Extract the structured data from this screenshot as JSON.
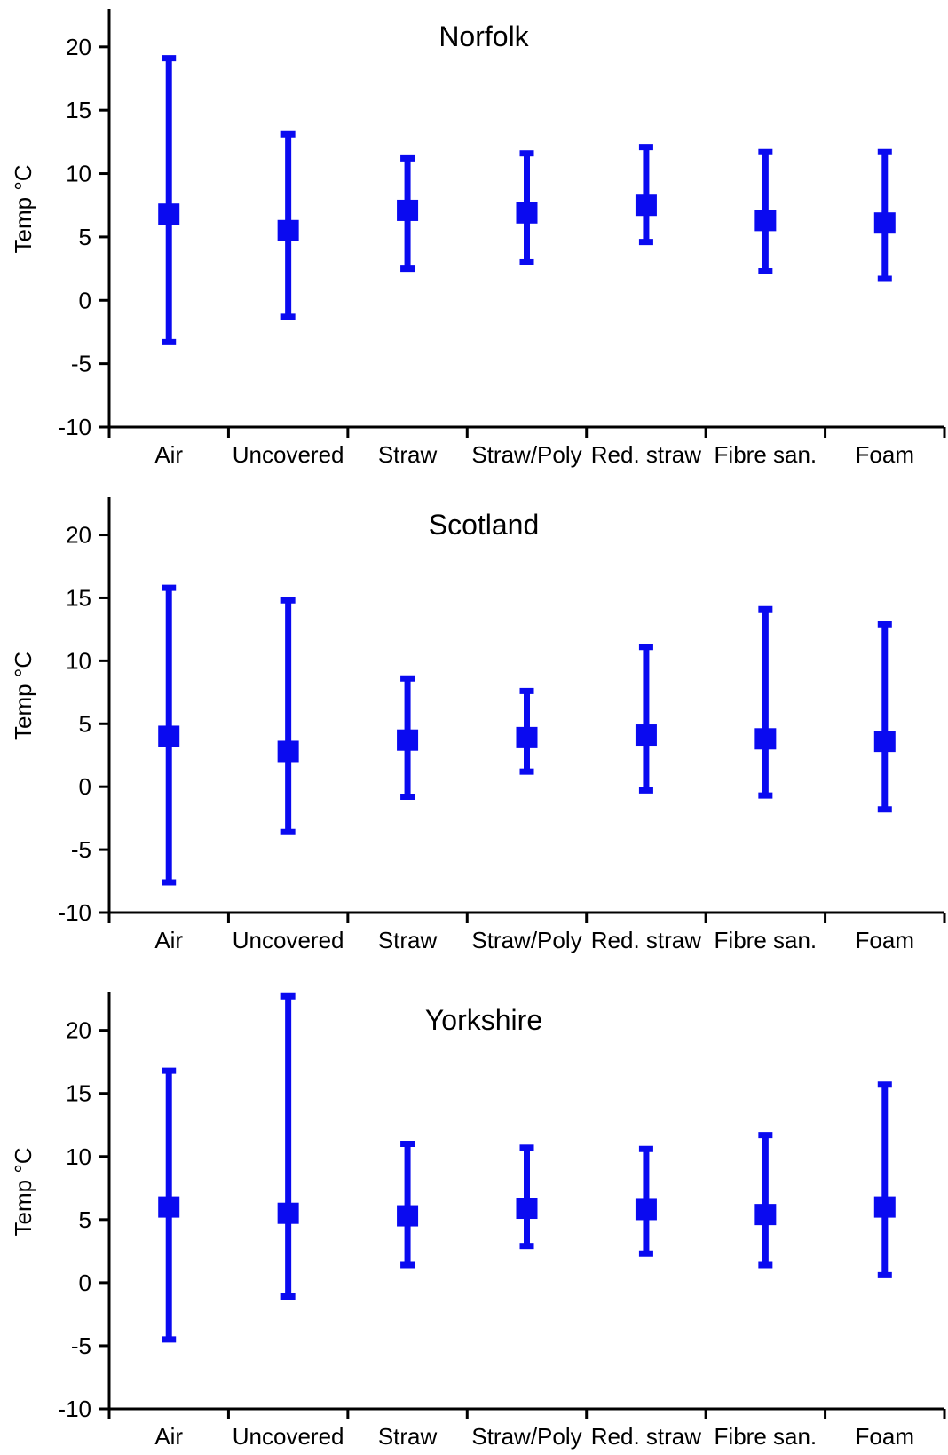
{
  "colors": {
    "series": "#0a0af0",
    "axis": "#000000"
  },
  "chart_data": [
    {
      "type": "errorbar",
      "title": "Norfolk",
      "ylabel": "Temp °C",
      "ylim": [
        -10,
        23
      ],
      "yticks": [
        -10,
        -5,
        0,
        5,
        10,
        15,
        20
      ],
      "categories": [
        "Air",
        "Uncovered",
        "Straw",
        "Straw/Poly",
        "Red. straw",
        "Fibre san.",
        "Foam"
      ],
      "mean": [
        6.8,
        5.5,
        7.1,
        6.9,
        7.5,
        6.3,
        6.1
      ],
      "min": [
        -3.3,
        -1.3,
        2.5,
        3.0,
        4.6,
        2.3,
        1.7
      ],
      "max": [
        19.1,
        13.1,
        11.2,
        11.6,
        12.1,
        11.7,
        11.7
      ]
    },
    {
      "type": "errorbar",
      "title": "Scotland",
      "ylabel": "Temp °C",
      "ylim": [
        -10,
        23
      ],
      "yticks": [
        -10,
        -5,
        0,
        5,
        10,
        15,
        20
      ],
      "categories": [
        "Air",
        "Uncovered",
        "Straw",
        "Straw/Poly",
        "Red. straw",
        "Fibre san.",
        "Foam"
      ],
      "mean": [
        4.0,
        2.8,
        3.7,
        3.9,
        4.1,
        3.8,
        3.6
      ],
      "min": [
        -7.6,
        -3.6,
        -0.8,
        1.2,
        -0.3,
        -0.7,
        -1.8
      ],
      "max": [
        15.8,
        14.8,
        8.6,
        7.6,
        11.1,
        14.1,
        12.9
      ]
    },
    {
      "type": "errorbar",
      "title": "Yorkshire",
      "ylabel": "Temp °C",
      "ylim": [
        -10,
        23
      ],
      "yticks": [
        -10,
        -5,
        0,
        5,
        10,
        15,
        20
      ],
      "categories": [
        "Air",
        "Uncovered",
        "Straw",
        "Straw/Poly",
        "Red. straw",
        "Fibre san.",
        "Foam"
      ],
      "mean": [
        6.0,
        5.5,
        5.3,
        5.9,
        5.8,
        5.4,
        6.0
      ],
      "min": [
        -4.5,
        -1.1,
        1.4,
        2.9,
        2.3,
        1.4,
        0.6
      ],
      "max": [
        16.8,
        22.7,
        11.0,
        10.7,
        10.6,
        11.7,
        15.7
      ]
    }
  ]
}
